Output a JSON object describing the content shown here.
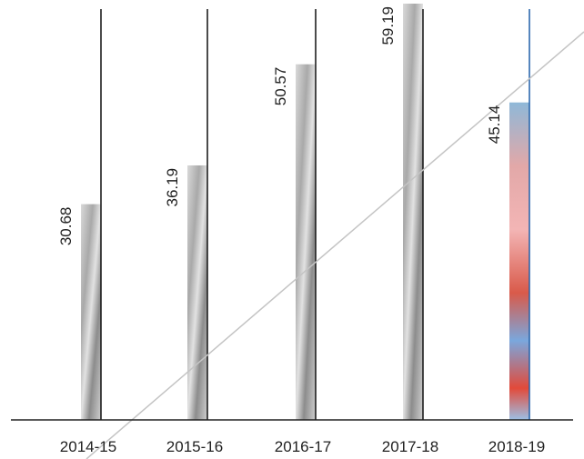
{
  "chart_data": {
    "type": "bar",
    "categories": [
      "2014-15",
      "2015-16",
      "2016-17",
      "2017-18",
      "2018-19"
    ],
    "values": [
      30.68,
      36.19,
      50.57,
      59.19,
      45.14
    ]
  }
}
